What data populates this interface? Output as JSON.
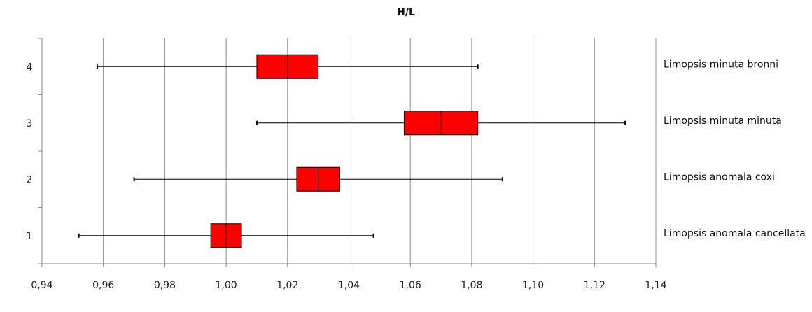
{
  "chart_data": {
    "type": "boxplot",
    "title": "H/L",
    "orientation": "horizontal",
    "xlim": [
      0.94,
      1.14
    ],
    "x_ticks": [
      "0,94",
      "0,96",
      "0,98",
      "1,00",
      "1,02",
      "1,04",
      "1,06",
      "1,08",
      "1,10",
      "1,12",
      "1,14"
    ],
    "x_tick_values": [
      0.94,
      0.96,
      0.98,
      1.0,
      1.02,
      1.04,
      1.06,
      1.08,
      1.1,
      1.12,
      1.14
    ],
    "y_ticks": [
      "1",
      "2",
      "3",
      "4"
    ],
    "grid": "vertical",
    "box_color": "#ff0000",
    "series": [
      {
        "name": "Limopsis anomala cancellata",
        "row": 1,
        "min": 0.952,
        "q1": 0.995,
        "median": 1.0,
        "q3": 1.005,
        "max": 1.048
      },
      {
        "name": "Limopsis anomala coxi",
        "row": 2,
        "min": 0.97,
        "q1": 1.023,
        "median": 1.03,
        "q3": 1.037,
        "max": 1.09
      },
      {
        "name": "Limopsis minuta minuta",
        "row": 3,
        "min": 1.01,
        "q1": 1.058,
        "median": 1.07,
        "q3": 1.082,
        "max": 1.13
      },
      {
        "name": "Limopsis minuta bronni",
        "row": 4,
        "min": 0.958,
        "q1": 1.01,
        "median": 1.02,
        "q3": 1.03,
        "max": 1.082
      }
    ]
  }
}
